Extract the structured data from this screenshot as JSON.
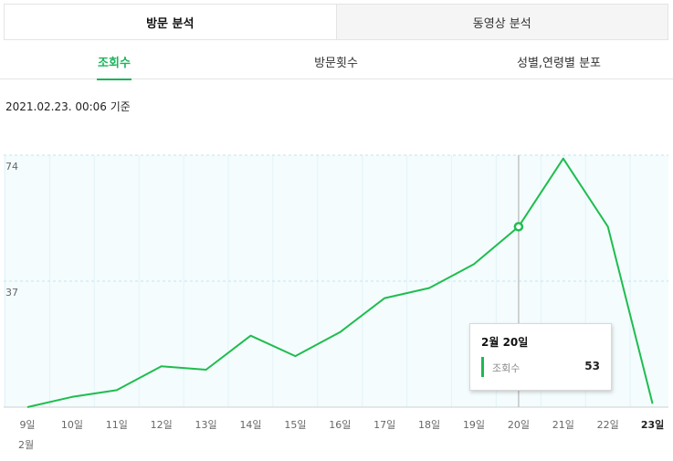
{
  "top_tabs": [
    {
      "label": "방문 분석",
      "active": true
    },
    {
      "label": "동영상 분석",
      "active": false
    }
  ],
  "sub_tabs": [
    {
      "label": "조회수",
      "active": true
    },
    {
      "label": "방문횟수",
      "active": false
    },
    {
      "label": "성별,연령별 분포",
      "active": false
    }
  ],
  "timestamp": "2021.02.23. 00:06 기준",
  "colors": {
    "accent": "#19b55a",
    "line": "#1fbd4e",
    "plot_bg": "#f4fcfe",
    "grid": "#bfe6ef"
  },
  "chart_data": {
    "type": "line",
    "categories": [
      "9일",
      "10일",
      "11일",
      "12일",
      "13일",
      "14일",
      "15일",
      "16일",
      "17일",
      "18일",
      "19일",
      "20일",
      "21일",
      "22일",
      "23일"
    ],
    "month_label": "2월",
    "series": [
      {
        "name": "조회수",
        "values": [
          0,
          3,
          5,
          12,
          11,
          21,
          15,
          22,
          32,
          35,
          42,
          53,
          73,
          53,
          1
        ]
      }
    ],
    "yticks": [
      37,
      74
    ],
    "ylim": [
      0,
      74
    ],
    "highlight_index": 11,
    "highlight_bold_index": 14,
    "grid": true,
    "title": "",
    "xlabel": "",
    "ylabel": ""
  },
  "tooltip": {
    "date": "2월 20일",
    "label": "조회수",
    "value": "53"
  }
}
